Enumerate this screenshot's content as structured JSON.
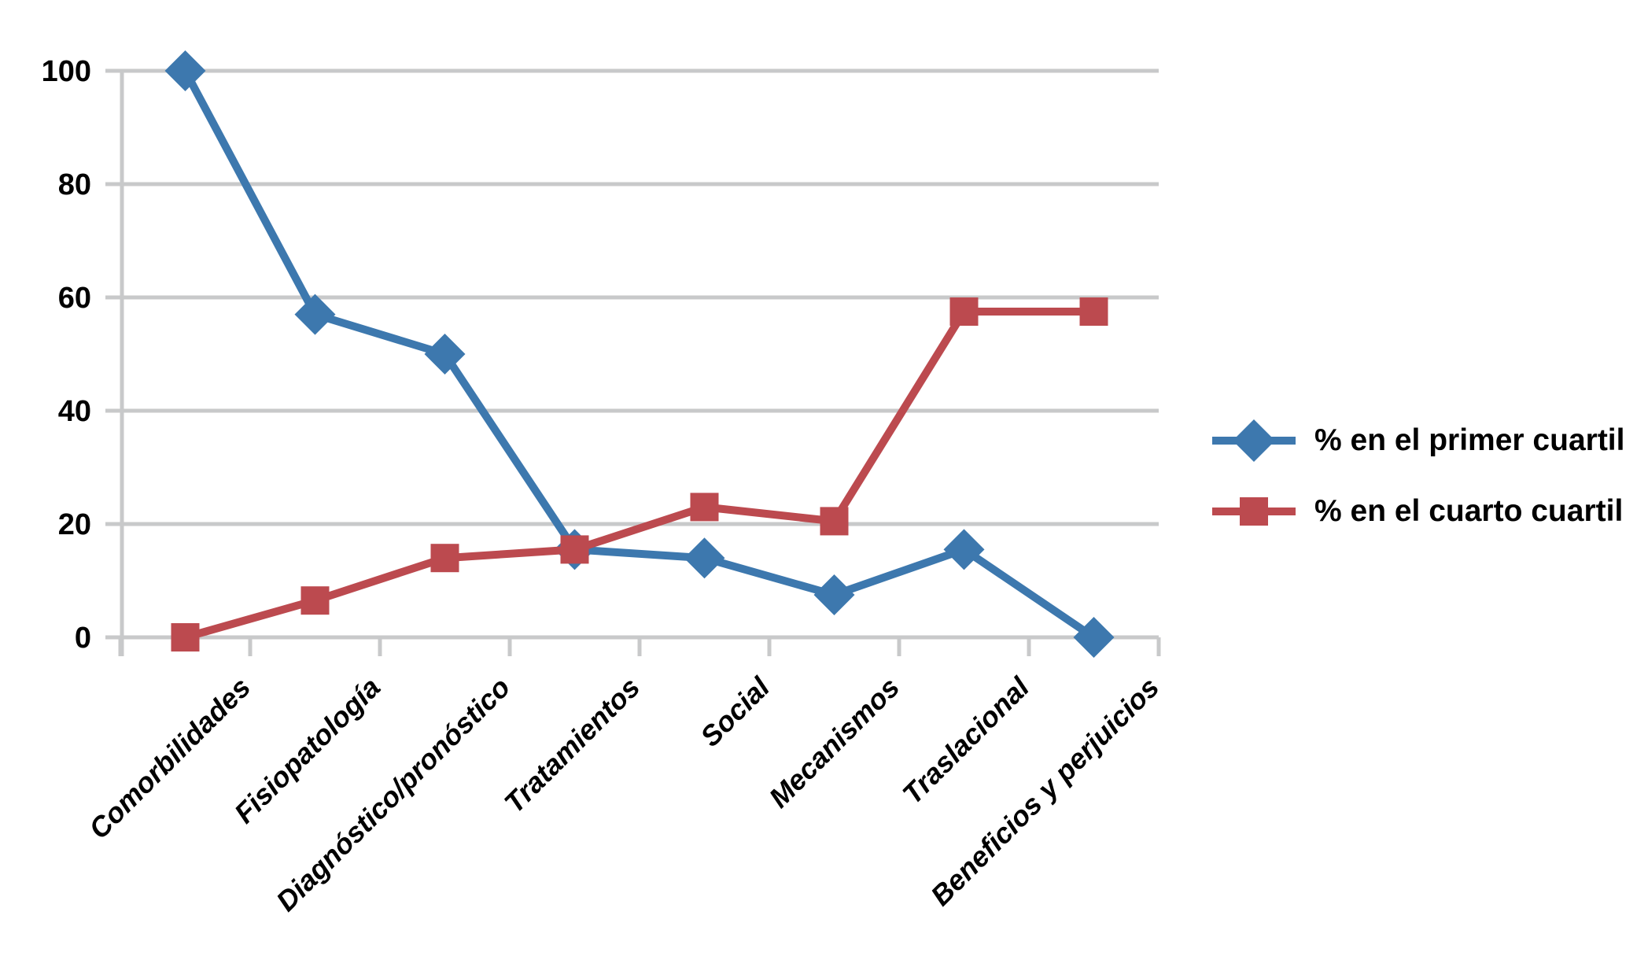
{
  "page": {
    "background": "#ffffff"
  },
  "chart_data": {
    "type": "line",
    "title": "",
    "xlabel": "",
    "ylabel": "",
    "categories": [
      "Comorbilidades",
      "Fisiopatología",
      "Diagnóstico/pronóstico",
      "Tratamientos",
      "Social",
      "Mecanismos",
      "Traslacional",
      "Beneficios y perjuicios"
    ],
    "series": [
      {
        "name": "% en el primer cuartil",
        "marker": "diamond",
        "color": "#3d78ae",
        "values": [
          100,
          57,
          50,
          15.5,
          14,
          7.5,
          15.5,
          0
        ]
      },
      {
        "name": "% en el cuarto cuartil",
        "marker": "square",
        "color": "#bc4a4f",
        "values": [
          0,
          6.5,
          14,
          15.5,
          23,
          20.5,
          57.5,
          57.5
        ]
      }
    ],
    "ylim": [
      0,
      100
    ],
    "yticks": [
      0,
      20,
      40,
      60,
      80,
      100
    ],
    "grid": true,
    "gridline_color": "#c8c9ca",
    "axis_color": "#c8c9ca",
    "text_color": "#000000",
    "legend_position": "right"
  }
}
